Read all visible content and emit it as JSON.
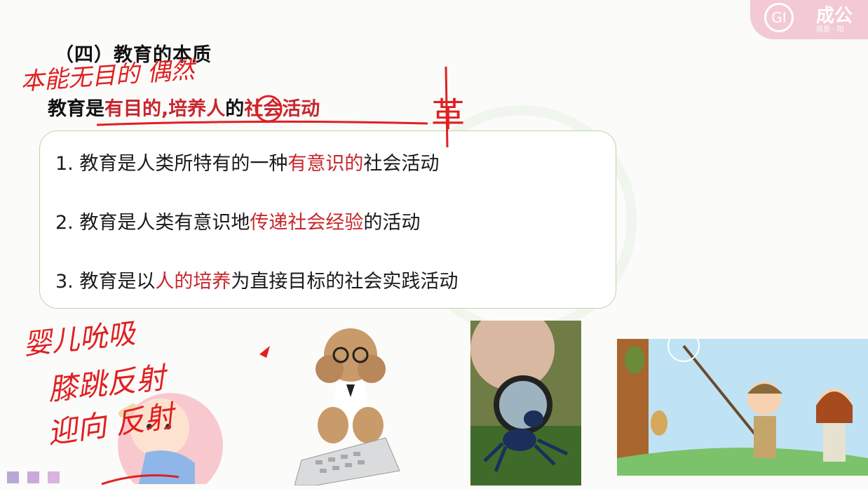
{
  "logo": {
    "mark": "GI",
    "name": "成公",
    "sub": "感恩 · 阳"
  },
  "heading": "（四）教育的本质",
  "definition": {
    "prefix": "教育是",
    "highlight": "有目的,培养人",
    "middle": "的",
    "suffix": "社会活动"
  },
  "points": [
    {
      "num": "1.",
      "pre": "教育是人类所特有的一种",
      "red": "有意识的",
      "post": "社会活动"
    },
    {
      "num": "2.",
      "pre": "教育是人类有意识地",
      "red": "传递社会经验",
      "post": "的活动"
    },
    {
      "num": "3.",
      "pre": "教育是以",
      "red": "人的培养",
      "post": "为直接目标的社会实践活动"
    }
  ],
  "handwriting": {
    "top_note": "本能无目的 偶然",
    "side_char": "革",
    "note_line1": "婴儿吮吸",
    "note_line2": "膝跳反射",
    "note_line3": "迎向 反射"
  },
  "colors": {
    "accent_red": "#c8262c",
    "box_border": "#bcd6a6",
    "logo_pink": "#f2c9d4",
    "square1": "#b8a8d8",
    "square2": "#c9a9d9",
    "square3": "#d8b4e0"
  },
  "images": [
    "baby-cartoon",
    "poodle-with-calculator",
    "ant-with-magnifier",
    "kids-catching-cicada"
  ]
}
